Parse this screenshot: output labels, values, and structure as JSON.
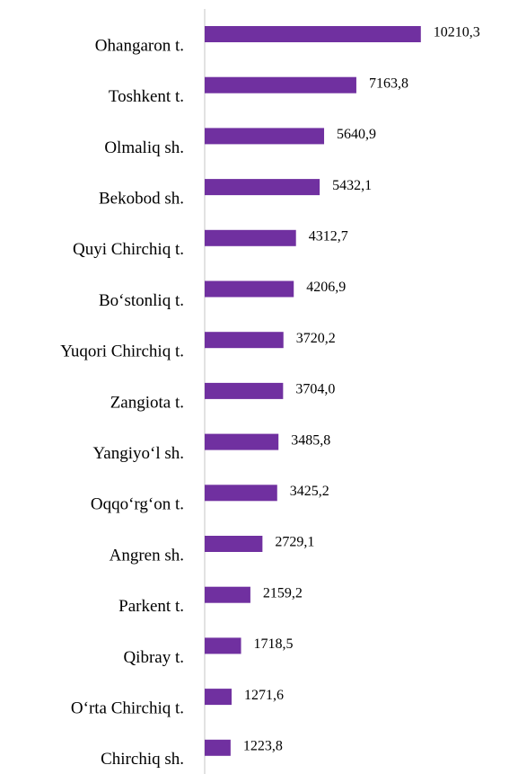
{
  "chart_data": {
    "type": "bar",
    "orientation": "horizontal",
    "categories": [
      "Ohangaron t.",
      "Toshkent t.",
      "Olmaliq sh.",
      "Bekobod sh.",
      "Quyi Chirchiq t.",
      "Bo‘stonliq t.",
      "Yuqori Chirchiq t.",
      "Zangiota t.",
      "Yangiyo‘l sh.",
      "Oqqo‘rg‘on t.",
      "Angren sh.",
      "Parkent t.",
      "Qibray t.",
      "O‘rta Chirchiq t.",
      "Chirchiq sh."
    ],
    "values": [
      10210.3,
      7163.8,
      5640.9,
      5432.1,
      4312.7,
      4206.9,
      3720.2,
      3704.0,
      3485.8,
      3425.2,
      2729.1,
      2159.2,
      1718.5,
      1271.6,
      1223.8
    ],
    "value_labels": [
      "10210,3",
      "7163,8",
      "5640,9",
      "5432,1",
      "4312,7",
      "4206,9",
      "3720,2",
      "3704,0",
      "3485,8",
      "3425,2",
      "2729,1",
      "2159,2",
      "1718,5",
      "1271,6",
      "1223,8"
    ],
    "color": "#7030a0",
    "xlim": [
      0,
      12000
    ]
  }
}
